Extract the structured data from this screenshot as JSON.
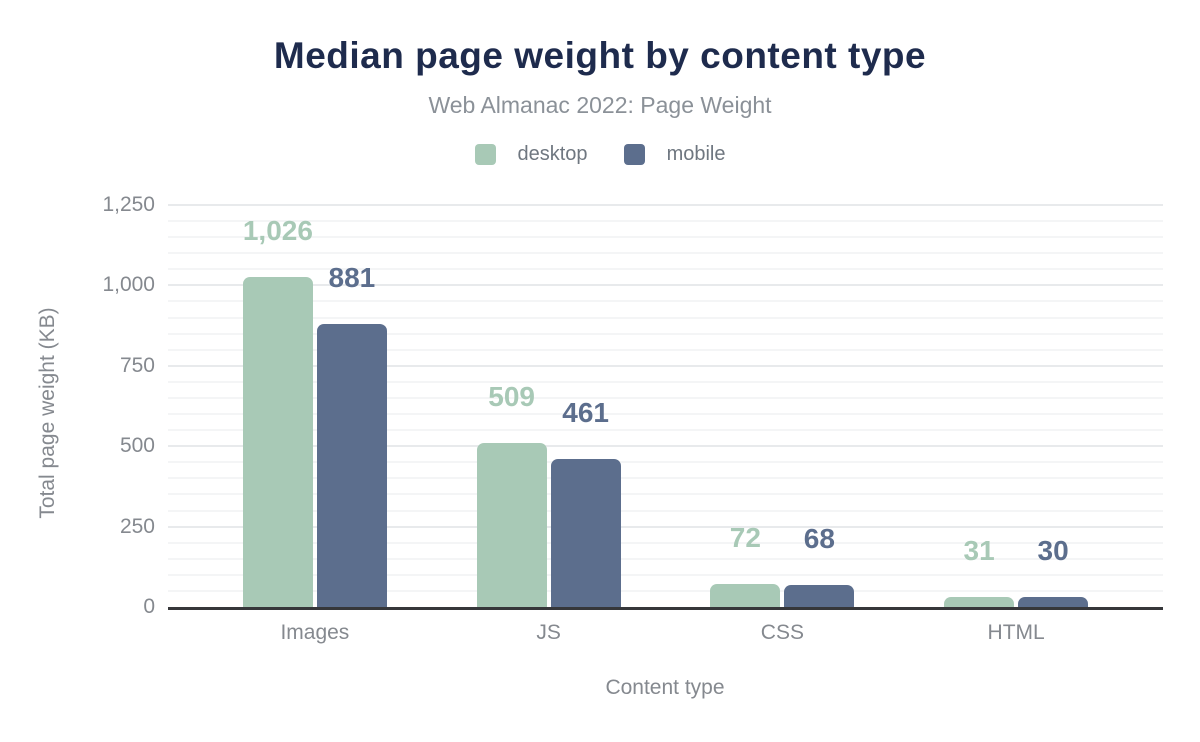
{
  "header": {
    "title": "Median page weight by content type",
    "subtitle": "Web Almanac 2022: Page Weight"
  },
  "colors": {
    "title": "#1e2b4d",
    "subtitle_text": "#8b9198",
    "axis_text": "#85898f",
    "axis_line": "#36373a",
    "grid_major": "#e8eaec",
    "grid_minor": "#f4f5f6",
    "desktop": "#a8c9b6",
    "mobile": "#5c6e8d"
  },
  "chart_data": {
    "type": "bar",
    "title": "Median page weight by content type",
    "subtitle": "Web Almanac 2022: Page Weight",
    "categories": [
      "Images",
      "JS",
      "CSS",
      "HTML"
    ],
    "series": [
      {
        "name": "desktop",
        "color": "#a8c9b6",
        "values": [
          1026,
          509,
          72,
          31
        ]
      },
      {
        "name": "mobile",
        "color": "#5c6e8d",
        "values": [
          881,
          461,
          68,
          30
        ]
      }
    ],
    "value_labels": [
      "1,026",
      "881",
      "509",
      "461",
      "72",
      "68",
      "31",
      "30"
    ],
    "xlabel": "Content type",
    "ylabel": "Total page weight (KB)",
    "ylim": [
      0,
      1250
    ],
    "ytick_step": 250,
    "minor_grid_step": 50,
    "yticks": [
      "0",
      "250",
      "500",
      "750",
      "1,000",
      "1,250"
    ],
    "grid": "horizontal-major-and-minor",
    "legend_position": "top",
    "legend": [
      "desktop",
      "mobile"
    ]
  }
}
